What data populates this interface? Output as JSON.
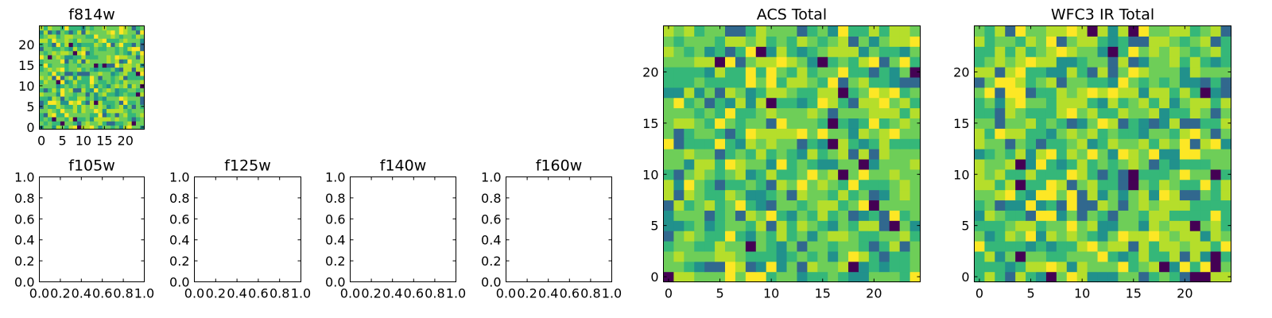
{
  "colormap": [
    "#440154",
    "#31688e",
    "#21918c",
    "#35b779",
    "#6ece58",
    "#b5de2b",
    "#fde725"
  ],
  "chart_data": [
    {
      "id": "f814w",
      "type": "heatmap",
      "title": "f814w",
      "grid_size": 25,
      "xlim": [
        -0.5,
        24.5
      ],
      "ylim": [
        -0.5,
        24.5
      ],
      "xticks": [
        0,
        5,
        10,
        15,
        20
      ],
      "xtick_labels": [
        "0",
        "5",
        "10",
        "15",
        "20"
      ],
      "yticks": [
        0,
        5,
        10,
        15,
        20
      ],
      "ytick_labels": [
        "0",
        "5",
        "10",
        "15",
        "20"
      ],
      "colormap": "viridis",
      "seed": 814,
      "bright_bias": 0.55
    },
    {
      "id": "f105w",
      "type": "scatter",
      "title": "f105w",
      "xlim": [
        0,
        1
      ],
      "ylim": [
        0,
        1
      ],
      "xticks": [
        0,
        0.2,
        0.4,
        0.6,
        0.8,
        1.0
      ],
      "xtick_labels": [
        "0.0",
        "0.2",
        "0.4",
        "0.6",
        "0.8",
        "1.0"
      ],
      "yticks": [
        0,
        0.2,
        0.4,
        0.6,
        0.8,
        1.0
      ],
      "ytick_labels": [
        "0.0",
        "0.2",
        "0.4",
        "0.6",
        "0.8",
        "1.0"
      ],
      "points": []
    },
    {
      "id": "f125w",
      "type": "scatter",
      "title": "f125w",
      "xlim": [
        0,
        1
      ],
      "ylim": [
        0,
        1
      ],
      "xticks": [
        0,
        0.2,
        0.4,
        0.6,
        0.8,
        1.0
      ],
      "xtick_labels": [
        "0.0",
        "0.2",
        "0.4",
        "0.6",
        "0.8",
        "1.0"
      ],
      "yticks": [
        0,
        0.2,
        0.4,
        0.6,
        0.8,
        1.0
      ],
      "ytick_labels": [
        "0.0",
        "0.2",
        "0.4",
        "0.6",
        "0.8",
        "1.0"
      ],
      "points": []
    },
    {
      "id": "f140w",
      "type": "scatter",
      "title": "f140w",
      "xlim": [
        0,
        1
      ],
      "ylim": [
        0,
        1
      ],
      "xticks": [
        0,
        0.2,
        0.4,
        0.6,
        0.8,
        1.0
      ],
      "xtick_labels": [
        "0.0",
        "0.2",
        "0.4",
        "0.6",
        "0.8",
        "1.0"
      ],
      "yticks": [
        0,
        0.2,
        0.4,
        0.6,
        0.8,
        1.0
      ],
      "ytick_labels": [
        "0.0",
        "0.2",
        "0.4",
        "0.6",
        "0.8",
        "1.0"
      ],
      "points": []
    },
    {
      "id": "f160w",
      "type": "scatter",
      "title": "f160w",
      "xlim": [
        0,
        1
      ],
      "ylim": [
        0,
        1
      ],
      "xticks": [
        0,
        0.2,
        0.4,
        0.6,
        0.8,
        1.0
      ],
      "xtick_labels": [
        "0.0",
        "0.2",
        "0.4",
        "0.6",
        "0.8",
        "1.0"
      ],
      "yticks": [
        0,
        0.2,
        0.4,
        0.6,
        0.8,
        1.0
      ],
      "ytick_labels": [
        "0.0",
        "0.2",
        "0.4",
        "0.6",
        "0.8",
        "1.0"
      ],
      "points": []
    },
    {
      "id": "acs-total",
      "type": "heatmap",
      "title": "ACS Total",
      "grid_size": 25,
      "xlim": [
        -0.5,
        24.5
      ],
      "ylim": [
        -0.5,
        24.5
      ],
      "xticks": [
        0,
        5,
        10,
        15,
        20
      ],
      "xtick_labels": [
        "0",
        "5",
        "10",
        "15",
        "20"
      ],
      "yticks": [
        0,
        5,
        10,
        15,
        20
      ],
      "ytick_labels": [
        "0",
        "5",
        "10",
        "15",
        "20"
      ],
      "colormap": "viridis",
      "seed": 2017,
      "bright_bias": 0.45
    },
    {
      "id": "wfc3-ir-total",
      "type": "heatmap",
      "title": "WFC3 IR Total",
      "grid_size": 25,
      "xlim": [
        -0.5,
        24.5
      ],
      "ylim": [
        -0.5,
        24.5
      ],
      "xticks": [
        0,
        5,
        10,
        15,
        20
      ],
      "xtick_labels": [
        "0",
        "5",
        "10",
        "15",
        "20"
      ],
      "yticks": [
        0,
        5,
        10,
        15,
        20
      ],
      "ytick_labels": [
        "0",
        "5",
        "10",
        "15",
        "20"
      ],
      "colormap": "viridis",
      "seed": 3141,
      "bright_bias": 0.25
    }
  ]
}
